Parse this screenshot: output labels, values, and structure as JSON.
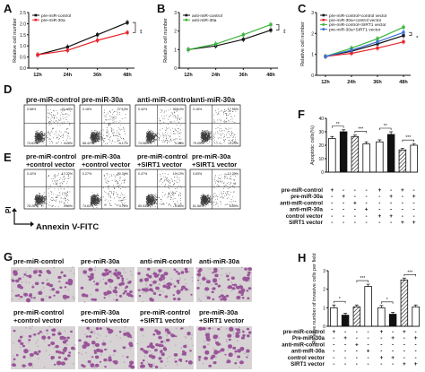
{
  "panels": {
    "A": {
      "letter": "A",
      "chart_data": {
        "type": "line",
        "ylabel": "Relative cell number",
        "categories": [
          "12h",
          "24h",
          "36h",
          "48h"
        ],
        "ylim": [
          0,
          2.5
        ],
        "yticks": [
          "0.0",
          "0.5",
          "1.0",
          "1.5",
          "2.0",
          "2.5"
        ],
        "legend_placement": "top-left",
        "series": [
          {
            "name": "pre-miR-control",
            "values": [
              0.6,
              0.95,
              1.5,
              2.05
            ],
            "color": "#111111"
          },
          {
            "name": "pre-miR-30a",
            "values": [
              0.6,
              0.8,
              1.25,
              1.6
            ],
            "color": "#e8232a"
          }
        ],
        "annotations": [
          "**"
        ]
      }
    },
    "B": {
      "letter": "B",
      "chart_data": {
        "type": "line",
        "ylabel": "Relative cell number",
        "categories": [
          "12h",
          "24h",
          "36h",
          "48h"
        ],
        "ylim": [
          0,
          3
        ],
        "yticks": [
          "0",
          "1",
          "2",
          "3"
        ],
        "legend_placement": "top-left",
        "series": [
          {
            "name": "anti-miR-control",
            "values": [
              1.0,
              1.2,
              1.55,
              2.05
            ],
            "color": "#111111"
          },
          {
            "name": "anti-miR-30a",
            "values": [
              1.0,
              1.3,
              1.8,
              2.35
            ],
            "color": "#3cb43c"
          }
        ],
        "annotations": [
          "**"
        ]
      }
    },
    "C": {
      "letter": "C",
      "chart_data": {
        "type": "line",
        "ylabel": "Relative cell number",
        "categories": [
          "12h",
          "24h",
          "36h",
          "48h"
        ],
        "ylim": [
          0,
          3
        ],
        "yticks": [
          "0",
          "1",
          "2",
          "3"
        ],
        "legend_placement": "top-left",
        "series": [
          {
            "name": "pre-miR-control+control vector",
            "values": [
              0.9,
              1.15,
              1.5,
              1.9
            ],
            "color": "#111111"
          },
          {
            "name": "pre-miR-30a+control vector",
            "values": [
              0.9,
              1.05,
              1.3,
              1.6
            ],
            "color": "#e8232a"
          },
          {
            "name": "pre-miR-control+SIRT1 vector",
            "values": [
              0.9,
              1.3,
              1.75,
              2.3
            ],
            "color": "#3cb43c"
          },
          {
            "name": "pre-miR-30a+SIRT1 vector",
            "values": [
              0.9,
              1.2,
              1.6,
              2.05
            ],
            "color": "#3a6fd8"
          }
        ],
        "annotations": [
          "*",
          "**",
          "*"
        ]
      }
    },
    "D": {
      "letter": "D",
      "labels": [
        "pre-miR-control",
        "pre-miR-30a",
        "anti-miR-control",
        "anti-miR-30a"
      ],
      "quadrants": [
        [
          "0.68%",
          "21.43%",
          "73.61%",
          "4.28%"
        ],
        [
          "0.18%",
          "27.13%",
          "68.42%",
          "4.17%"
        ],
        [
          "0.42%",
          "22.14%",
          "74.08%",
          "3.36%"
        ],
        [
          "0.16%",
          "17.55%",
          "79.05%",
          "3.24%"
        ]
      ]
    },
    "E": {
      "letter": "E",
      "labels": [
        [
          "pre-miR-control",
          "+control vector"
        ],
        [
          "pre-miR-30a",
          "+control vector"
        ],
        [
          "pre-miR-control",
          "+SIRT1 vector"
        ],
        [
          "pre-miR-30a",
          "+SIRT1 vector"
        ]
      ],
      "quadrants": [
        [
          "0.42%",
          "17.32%",
          "78.26%",
          "4.00%"
        ],
        [
          "0.27%",
          "20.34%",
          "74.63%",
          "4.76%"
        ],
        [
          "0.47%",
          "10.17%",
          "85.53%",
          "3.83%"
        ],
        [
          "0.63%",
          "12.20%",
          "81.58%",
          "5.59%"
        ]
      ],
      "ylabel": "PI",
      "xlabel": "Annexin V-FITC"
    },
    "F": {
      "letter": "F",
      "chart_data": {
        "type": "bar",
        "ylabel": "Apoptotic cells(%)",
        "ylim": [
          0,
          40
        ],
        "yticks": [
          "0",
          "10",
          "20",
          "30",
          "40"
        ],
        "values": [
          25.0,
          30.0,
          26.5,
          21.0,
          22.5,
          28.0,
          16.5,
          20.0
        ],
        "errors": [
          1.5,
          1.5,
          1.2,
          1.5,
          1.5,
          2.0,
          1.2,
          1.2
        ],
        "fills": [
          "white",
          "black",
          "hatch",
          "white",
          "white",
          "black",
          "hatch",
          "white"
        ],
        "sig": [
          "**",
          "***",
          "**",
          "***"
        ],
        "rows": [
          {
            "label": "pre-miR-control",
            "marks": [
              "+",
              "-",
              "-",
              "-",
              "+",
              "-",
              "+",
              "-"
            ]
          },
          {
            "label": "pre-miR-30a",
            "marks": [
              "-",
              "+",
              "-",
              "-",
              "-",
              "+",
              "-",
              "+"
            ]
          },
          {
            "label": "anti-miR-control",
            "marks": [
              "-",
              "-",
              "+",
              "-",
              "-",
              "-",
              "-",
              "-"
            ]
          },
          {
            "label": "anti-miR-30a",
            "marks": [
              "-",
              "-",
              "-",
              "+",
              "-",
              "-",
              "-",
              "-"
            ]
          },
          {
            "label": "control vector",
            "marks": [
              "-",
              "-",
              "-",
              "-",
              "+",
              "+",
              "-",
              "-"
            ]
          },
          {
            "label": "SIRT1 vector",
            "marks": [
              "-",
              "-",
              "-",
              "-",
              "-",
              "-",
              "+",
              "+"
            ]
          }
        ]
      }
    },
    "G": {
      "letter": "G",
      "labels": [
        [
          "pre-miR-control"
        ],
        [
          "pre-miR-30a"
        ],
        [
          "anti-miR-control"
        ],
        [
          "anti-miR-30a"
        ],
        [
          "pre-miR-control",
          "+control vector"
        ],
        [
          "pre-miR-30a",
          "+control vector"
        ],
        [
          "pre-miR-control",
          "+SIRT1 vector"
        ],
        [
          "pre-miR-30a",
          "+SIRT1 vector"
        ]
      ]
    },
    "H": {
      "letter": "H",
      "chart_data": {
        "type": "bar",
        "ylabel": "Relative number of invasive cells per field",
        "ylim": [
          0,
          3
        ],
        "yticks": [
          "0",
          "1",
          "2",
          "3"
        ],
        "values": [
          1.0,
          0.6,
          1.05,
          2.15,
          1.0,
          0.65,
          2.5,
          1.05
        ],
        "errors": [
          0.15,
          0.1,
          0.1,
          0.12,
          0.12,
          0.1,
          0.1,
          0.1
        ],
        "fills": [
          "white",
          "black",
          "hatch",
          "white",
          "white",
          "black",
          "hatch",
          "white"
        ],
        "sig": [
          "*",
          "***",
          "*",
          "***"
        ],
        "rows": [
          {
            "label": "pre-miR-control",
            "marks": [
              "+",
              "-",
              "-",
              "-",
              "+",
              "-",
              "+",
              "-"
            ]
          },
          {
            "label": "Pre-miR-30a",
            "marks": [
              "-",
              "+",
              "-",
              "-",
              "-",
              "+",
              "-",
              "+"
            ]
          },
          {
            "label": "anti-miR-control",
            "marks": [
              "-",
              "-",
              "+",
              "-",
              "-",
              "-",
              "-",
              "-"
            ]
          },
          {
            "label": "anti-miR-30a",
            "marks": [
              "-",
              "-",
              "-",
              "+",
              "-",
              "-",
              "-",
              "-"
            ]
          },
          {
            "label": "control vector",
            "marks": [
              "-",
              "-",
              "-",
              "-",
              "+",
              "+",
              "-",
              "-"
            ]
          },
          {
            "label": "SIRT1 vector",
            "marks": [
              "-",
              "-",
              "-",
              "-",
              "-",
              "-",
              "+",
              "+"
            ]
          }
        ]
      }
    }
  },
  "colors": {
    "black": "#111111",
    "red": "#e8232a",
    "green": "#3cb43c",
    "blue": "#3a6fd8",
    "flow_dot": "#3a3a3a",
    "invasion_bg": "#d7d2d4",
    "invasion_cell": "#8e3f8e"
  }
}
